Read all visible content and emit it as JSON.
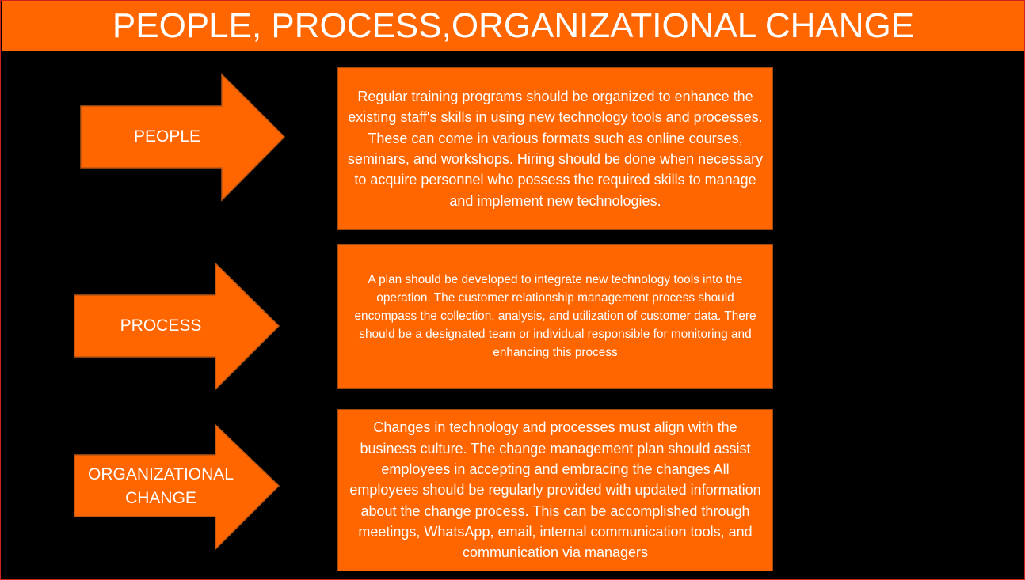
{
  "title": "PEOPLE, PROCESS,ORGANIZATIONAL CHANGE",
  "colors": {
    "accent": "#ff6600",
    "background": "#000000",
    "text": "#ffffff"
  },
  "rows": [
    {
      "label": "PEOPLE",
      "description": "Regular training programs should be organized to enhance the existing staff's skills in using new technology tools and processes. These can come in various formats such as online courses, seminars, and workshops. Hiring should be done when necessary to acquire personnel who possess the required skills to manage and implement new technologies."
    },
    {
      "label": "PROCESS",
      "description": "A plan should be developed to integrate new technology tools into the operation. The customer relationship management process should encompass the collection, analysis, and utilization of customer data. There should be a designated team or individual responsible for monitoring and enhancing this process"
    },
    {
      "label": "ORGANIZATIONAL CHANGE",
      "description": "Changes in technology and processes must align with the business culture. The change management plan should assist employees in accepting and embracing the changes All employees should be regularly provided with updated information about the change process. This can be accomplished through meetings, WhatsApp, email, internal communication tools, and communication via managers"
    }
  ]
}
